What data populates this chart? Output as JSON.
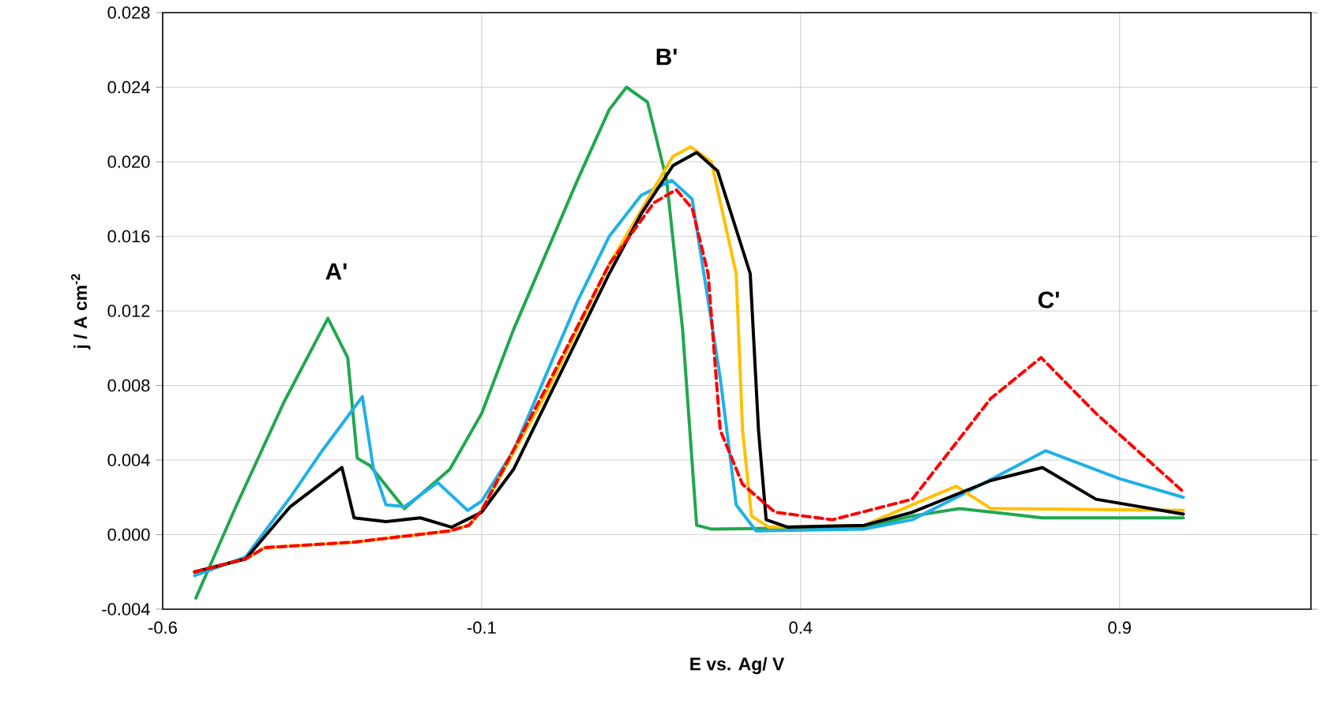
{
  "chart_data": {
    "type": "line",
    "xlabel": "E vs. Ag/ V",
    "ylabel": "j / A cm$^{-2}$",
    "xlim": [
      -0.6,
      1.2
    ],
    "ylim": [
      -0.004,
      0.028
    ],
    "xticks": [
      -0.6,
      -0.1,
      0.4,
      0.9
    ],
    "yticks": [
      {
        "value": -0.004,
        "label": "-0.004"
      },
      {
        "value": 0,
        "label": "0.000"
      },
      {
        "value": 0.004,
        "label": "0.004"
      },
      {
        "value": 0.008,
        "label": "0.008"
      },
      {
        "value": 0.012,
        "label": "0.012"
      },
      {
        "value": 0.016,
        "label": "0.016"
      },
      {
        "value": 0.02,
        "label": "0.020"
      },
      {
        "value": 0.024,
        "label": "0.024"
      },
      {
        "value": 0.028,
        "label": "0.028"
      }
    ],
    "grid": true,
    "marker": "none",
    "annotations": [
      "A'",
      "B'",
      "C'"
    ],
    "series": [
      {
        "color": "#21a74f",
        "line_style": "solid",
        "x": [
          -0.548,
          -0.484,
          -0.41,
          -0.341,
          -0.31,
          -0.295,
          -0.275,
          -0.221,
          -0.15,
          -0.1,
          -0.05,
          0,
          0.05,
          0.1,
          0.127,
          0.16,
          0.19,
          0.215,
          0.237,
          0.26,
          0.5,
          0.575,
          0.649,
          0.779,
          1.0
        ],
        "values": [
          -0.0034,
          0.0016,
          0.0071,
          0.0116,
          0.0095,
          0.0041,
          0.0037,
          0.0014,
          0.0035,
          0.0065,
          0.011,
          0.015,
          0.019,
          0.0228,
          0.024,
          0.0232,
          0.019,
          0.011,
          0.0005,
          0.0003,
          0.0004,
          0.001,
          0.0014,
          0.0009,
          0.0009
        ]
      },
      {
        "color": "#1fb0e8",
        "line_style": "solid",
        "x": [
          -0.55,
          -0.47,
          -0.4,
          -0.35,
          -0.287,
          -0.27,
          -0.25,
          -0.221,
          -0.169,
          -0.122,
          -0.1,
          -0.05,
          0,
          0.05,
          0.1,
          0.15,
          0.198,
          0.23,
          0.274,
          0.299,
          0.33,
          0.5,
          0.575,
          0.656,
          0.784,
          0.9,
          1.0
        ],
        "values": [
          -0.0022,
          -0.0012,
          0.002,
          0.0045,
          0.0074,
          0.0036,
          0.0016,
          0.0015,
          0.0028,
          0.0013,
          0.0018,
          0.0045,
          0.0085,
          0.0125,
          0.016,
          0.0182,
          0.019,
          0.018,
          0.0084,
          0.0016,
          0.0002,
          0.0003,
          0.0008,
          0.0022,
          0.0045,
          0.003,
          0.002
        ]
      },
      {
        "color": "#ffc000",
        "line_style": "solid",
        "x": [
          -0.55,
          -0.47,
          -0.44,
          -0.3,
          -0.15,
          -0.12,
          -0.1,
          0,
          0.1,
          0.2,
          0.228,
          0.26,
          0.299,
          0.309,
          0.323,
          0.35,
          0.5,
          0.575,
          0.644,
          0.698,
          1.0
        ],
        "values": [
          -0.002,
          -0.0013,
          -0.0007,
          -0.0004,
          0.0002,
          0.0005,
          0.0013,
          0.0075,
          0.0145,
          0.0203,
          0.0208,
          0.02,
          0.014,
          0.0056,
          0.001,
          0.0004,
          0.0005,
          0.0016,
          0.0026,
          0.0014,
          0.0013
        ]
      },
      {
        "color": "#ff0000",
        "line_style": "dashed",
        "x": [
          -0.55,
          -0.47,
          -0.44,
          -0.3,
          -0.15,
          -0.12,
          -0.1,
          0,
          0.1,
          0.17,
          0.205,
          0.23,
          0.255,
          0.274,
          0.309,
          0.36,
          0.45,
          0.575,
          0.698,
          0.777,
          0.863,
          1.0
        ],
        "values": [
          -0.002,
          -0.0013,
          -0.0007,
          -0.0004,
          0.0002,
          0.0005,
          0.0013,
          0.0078,
          0.0145,
          0.0178,
          0.0185,
          0.0175,
          0.014,
          0.0056,
          0.0027,
          0.0012,
          0.0008,
          0.0019,
          0.0073,
          0.0095,
          0.0065,
          0.0023
        ]
      },
      {
        "color": "#000000",
        "line_style": "solid",
        "x": [
          -0.55,
          -0.47,
          -0.4,
          -0.319,
          -0.3,
          -0.25,
          -0.196,
          -0.147,
          -0.1,
          -0.05,
          0,
          0.05,
          0.1,
          0.15,
          0.2,
          0.237,
          0.27,
          0.321,
          0.334,
          0.346,
          0.38,
          0.5,
          0.575,
          0.698,
          0.779,
          0.863,
          1.0
        ],
        "values": [
          -0.002,
          -0.0013,
          0.0015,
          0.0036,
          0.0009,
          0.0007,
          0.0009,
          0.0004,
          0.0012,
          0.0035,
          0.007,
          0.0105,
          0.014,
          0.0172,
          0.0198,
          0.0205,
          0.0195,
          0.014,
          0.0056,
          0.0008,
          0.0004,
          0.0005,
          0.0012,
          0.0029,
          0.0036,
          0.0019,
          0.0011
        ]
      }
    ]
  }
}
